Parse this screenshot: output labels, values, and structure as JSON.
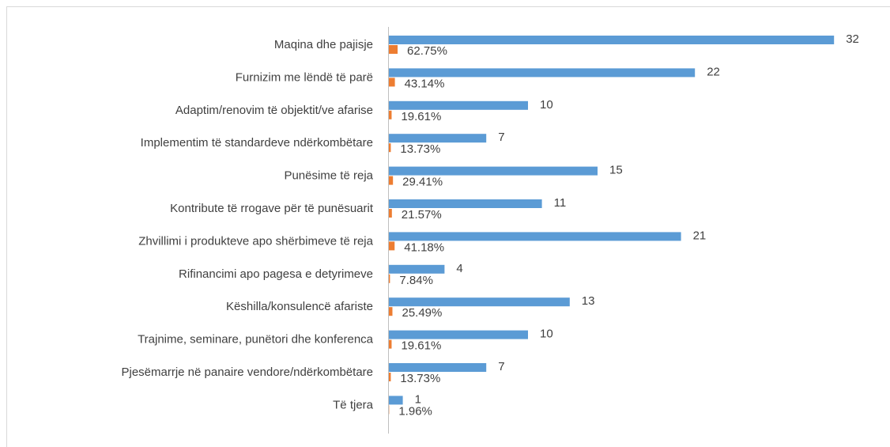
{
  "chart_data": {
    "type": "bar",
    "orientation": "horizontal",
    "categories": [
      "Maqina dhe pajisje",
      "Furnizim me lëndë të parë",
      "Adaptim/renovim të objektit/ve afarise",
      "Implementim të standardeve ndërkombëtare",
      "Punësime të reja",
      "Kontribute të rrogave për të punësuarit",
      "Zhvillimi i produkteve apo shërbimeve të reja",
      "Rifinancimi apo pagesa e detyrimeve",
      "Këshilla/konsulencë afariste",
      "Trajnime, seminare, punëtori dhe konferenca",
      "Pjesëmarrje në panaire vendore/ndërkombëtare",
      "Të tjera"
    ],
    "series": [
      {
        "color": "#5b9bd5",
        "values": [
          32,
          22,
          10,
          7,
          15,
          11,
          21,
          4,
          13,
          10,
          7,
          1
        ]
      },
      {
        "color": "#ed7d31",
        "values": [
          0.6275,
          0.4314,
          0.1961,
          0.1373,
          0.2941,
          0.2157,
          0.4118,
          0.0784,
          0.2549,
          0.1961,
          0.1373,
          0.0196
        ],
        "value_labels": [
          "62.75%",
          "43.14%",
          "19.61%",
          "13.73%",
          "29.41%",
          "21.57%",
          "41.18%",
          "7.84%",
          "25.49%",
          "19.61%",
          "13.73%",
          "1.96%"
        ]
      }
    ],
    "xlim": [
      0,
      35
    ]
  }
}
